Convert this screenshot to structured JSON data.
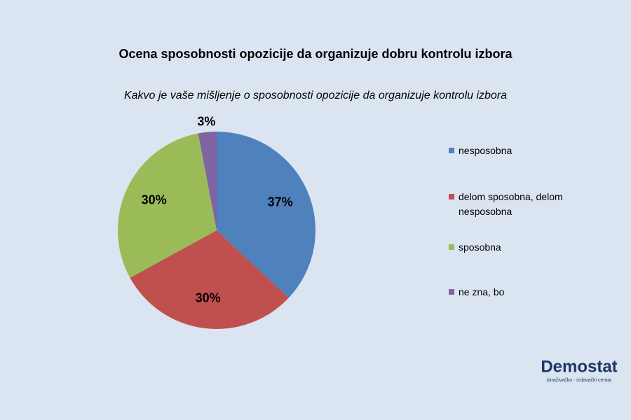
{
  "chart_data": {
    "type": "pie",
    "title": "Ocena sposobnosti opozicije da organizuje dobru kontrolu izbora",
    "subtitle": "Kakvo je vaše mišljenje o sposobnosti opozicije da organizuje kontrolu izbora",
    "categories": [
      "nesposobna",
      "delom sposobna, delom nesposobna",
      "sposobna",
      "ne zna, bo"
    ],
    "values": [
      37,
      30,
      30,
      3
    ],
    "value_labels": [
      "37%",
      "30%",
      "30%",
      "3%"
    ],
    "colors": [
      "#4f81bd",
      "#c0504d",
      "#9bbb59",
      "#8064a2"
    ],
    "legend": "right"
  },
  "logo": {
    "name": "Demostat",
    "tagline": "istraživačko - izdavački centar"
  }
}
